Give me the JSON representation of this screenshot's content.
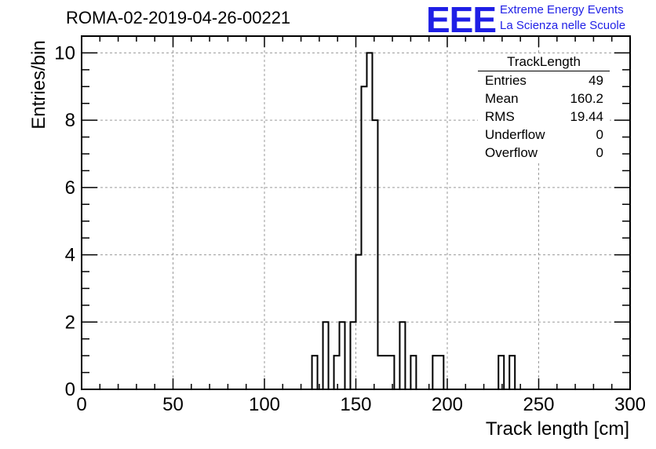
{
  "header": {
    "title": "ROMA-02-2019-04-26-00221",
    "logo_text": "EEE",
    "logo_line1": "Extreme Energy Events",
    "logo_line2": "La Scienza nelle Scuole",
    "logo_color": "#1f1fe6"
  },
  "stats": {
    "title": "TrackLength",
    "rows": [
      {
        "label": "Entries",
        "value": "49"
      },
      {
        "label": "Mean",
        "value": "160.2"
      },
      {
        "label": "RMS",
        "value": "19.44"
      },
      {
        "label": "Underflow",
        "value": "0"
      },
      {
        "label": "Overflow",
        "value": "0"
      }
    ]
  },
  "chart_data": {
    "type": "bar",
    "title": "ROMA-02-2019-04-26-00221",
    "xlabel": "Track length [cm]",
    "ylabel": "Entries/bin",
    "xlim": [
      0,
      300
    ],
    "ylim": [
      0,
      10.5
    ],
    "bin_width": 3,
    "xticks": [
      0,
      50,
      100,
      150,
      200,
      250,
      300
    ],
    "yticks": [
      0,
      2,
      4,
      6,
      8,
      10
    ],
    "grid": true,
    "bins": [
      {
        "x0": 126,
        "count": 1
      },
      {
        "x0": 132,
        "count": 2
      },
      {
        "x0": 138,
        "count": 1
      },
      {
        "x0": 141,
        "count": 2
      },
      {
        "x0": 147,
        "count": 2
      },
      {
        "x0": 150,
        "count": 4
      },
      {
        "x0": 153,
        "count": 9
      },
      {
        "x0": 156,
        "count": 10
      },
      {
        "x0": 159,
        "count": 8
      },
      {
        "x0": 162,
        "count": 1
      },
      {
        "x0": 165,
        "count": 1
      },
      {
        "x0": 168,
        "count": 1
      },
      {
        "x0": 174,
        "count": 2
      },
      {
        "x0": 180,
        "count": 1
      },
      {
        "x0": 192,
        "count": 1
      },
      {
        "x0": 195,
        "count": 1
      },
      {
        "x0": 228,
        "count": 1
      },
      {
        "x0": 234,
        "count": 1
      }
    ]
  }
}
